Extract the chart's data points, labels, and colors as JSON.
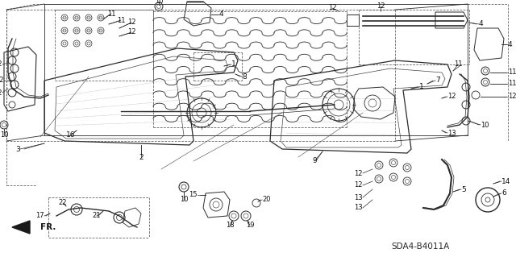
{
  "bg_color": "#ffffff",
  "diagram_code": "SDA4-B4011A",
  "fig_width": 6.4,
  "fig_height": 3.19,
  "dpi": 100,
  "line_color": "#2a2a2a",
  "label_fontsize": 6.5
}
